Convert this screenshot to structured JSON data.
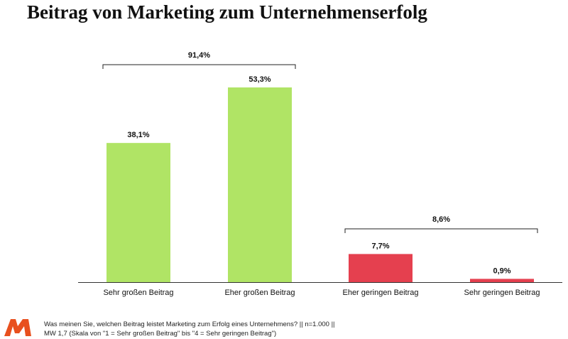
{
  "chart_data": {
    "type": "bar",
    "title": "Beitrag von Marketing zum Unternehmenserfolg",
    "categories": [
      "Sehr großen Beitrag",
      "Eher großen Beitrag",
      "Eher geringen Beitrag",
      "Sehr geringen Beitrag"
    ],
    "values": [
      38.1,
      53.3,
      7.7,
      0.9
    ],
    "data_labels": [
      "38,1%",
      "53,3%",
      "7,7%",
      "0,9%"
    ],
    "colors": [
      "#b0e465",
      "#b0e465",
      "#e5404f",
      "#e5404f"
    ],
    "groups": [
      {
        "label": "91,4%",
        "categories": [
          0,
          1
        ]
      },
      {
        "label": "8,6%",
        "categories": [
          2,
          3
        ]
      }
    ],
    "xlabel": "",
    "ylabel": "",
    "ylim": [
      0,
      60
    ],
    "grid": false
  },
  "footer": {
    "line1": "Was meinen Sie, welchen Beitrag leistet Marketing zum Erfolg eines Unternehmens? || n=1.000 ||",
    "line2": "MW 1,7 (Skala von \"1 = Sehr großen Beitrag\" bis \"4 = Sehr geringen Beitrag\")",
    "logo_color": "#e8501e"
  }
}
